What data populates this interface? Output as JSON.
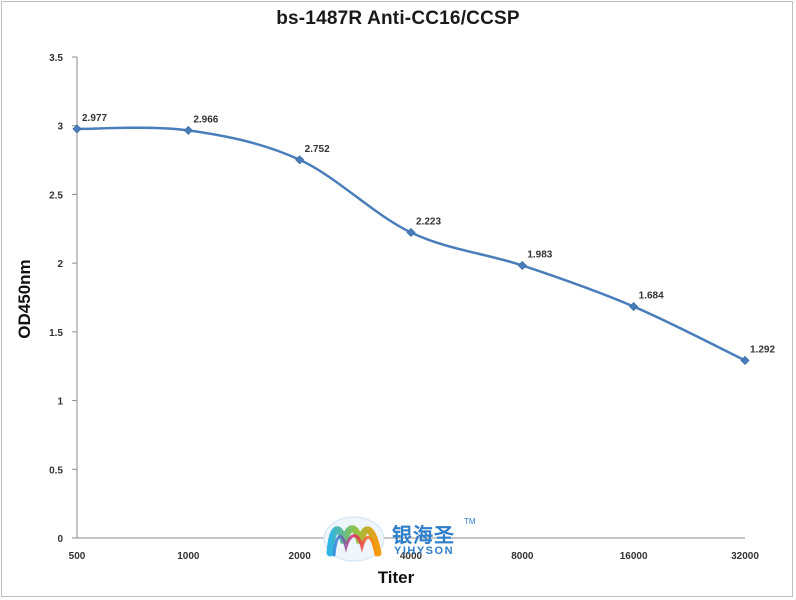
{
  "chart_data": {
    "type": "line",
    "title": "bs-1487R Anti-CC16/CCSP",
    "xlabel": "Titer",
    "ylabel": "OD450nm",
    "categories": [
      "500",
      "1000",
      "2000",
      "4000",
      "8000",
      "16000",
      "32000"
    ],
    "values": [
      2.977,
      2.966,
      2.752,
      2.223,
      1.983,
      1.684,
      1.292
    ],
    "data_labels": [
      "2.977",
      "2.966",
      "2.752",
      "2.223",
      "1.983",
      "1.684",
      "1.292"
    ],
    "ylim": [
      0,
      3.5
    ],
    "yticks": [
      0,
      0.5,
      1,
      1.5,
      2,
      2.5,
      3,
      3.5
    ],
    "ytick_labels": [
      "0",
      "0.5",
      "1",
      "1.5",
      "2",
      "2.5",
      "3",
      "3.5"
    ],
    "grid": false,
    "legend": "none",
    "line_color": "#4a7ebb",
    "marker": "diamond"
  },
  "logo": {
    "name_cn": "银海圣",
    "name_en": "YIHYSON",
    "trademark": "TM"
  }
}
